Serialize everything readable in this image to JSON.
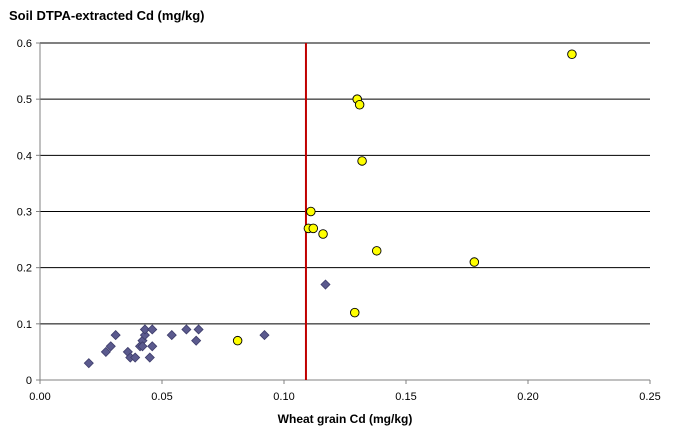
{
  "chart_data": {
    "type": "scatter",
    "title": "Soil DTPA-extracted Cd (mg/kg)",
    "xlabel": "Wheat grain Cd (mg/kg)",
    "ylabel": "",
    "xlim": [
      0,
      0.25
    ],
    "ylim": [
      0,
      0.6
    ],
    "x_ticks": [
      "0.00",
      "0.05",
      "0.10",
      "0.15",
      "0.20",
      "0.25"
    ],
    "y_ticks": [
      "0",
      "0.1",
      "0.2",
      "0.3",
      "0.4",
      "0.5",
      "0.6"
    ],
    "gridlines": "horizontal",
    "threshold_line": {
      "x": 0.109,
      "color": "#c00000"
    },
    "series": [
      {
        "marker": "diamond",
        "color": "#5b5a8e",
        "points": [
          [
            0.02,
            0.03
          ],
          [
            0.027,
            0.05
          ],
          [
            0.029,
            0.06
          ],
          [
            0.031,
            0.08
          ],
          [
            0.036,
            0.05
          ],
          [
            0.037,
            0.04
          ],
          [
            0.039,
            0.04
          ],
          [
            0.041,
            0.06
          ],
          [
            0.042,
            0.07
          ],
          [
            0.042,
            0.06
          ],
          [
            0.043,
            0.08
          ],
          [
            0.043,
            0.09
          ],
          [
            0.045,
            0.04
          ],
          [
            0.046,
            0.06
          ],
          [
            0.046,
            0.09
          ],
          [
            0.054,
            0.08
          ],
          [
            0.06,
            0.09
          ],
          [
            0.064,
            0.07
          ],
          [
            0.065,
            0.09
          ],
          [
            0.092,
            0.08
          ],
          [
            0.117,
            0.17
          ]
        ]
      },
      {
        "marker": "circle",
        "color": "#ffff00",
        "points": [
          [
            0.081,
            0.07
          ],
          [
            0.11,
            0.27
          ],
          [
            0.111,
            0.3
          ],
          [
            0.112,
            0.27
          ],
          [
            0.116,
            0.26
          ],
          [
            0.129,
            0.12
          ],
          [
            0.13,
            0.5
          ],
          [
            0.131,
            0.49
          ],
          [
            0.132,
            0.39
          ],
          [
            0.138,
            0.23
          ],
          [
            0.178,
            0.21
          ],
          [
            0.218,
            0.58
          ]
        ]
      }
    ]
  }
}
